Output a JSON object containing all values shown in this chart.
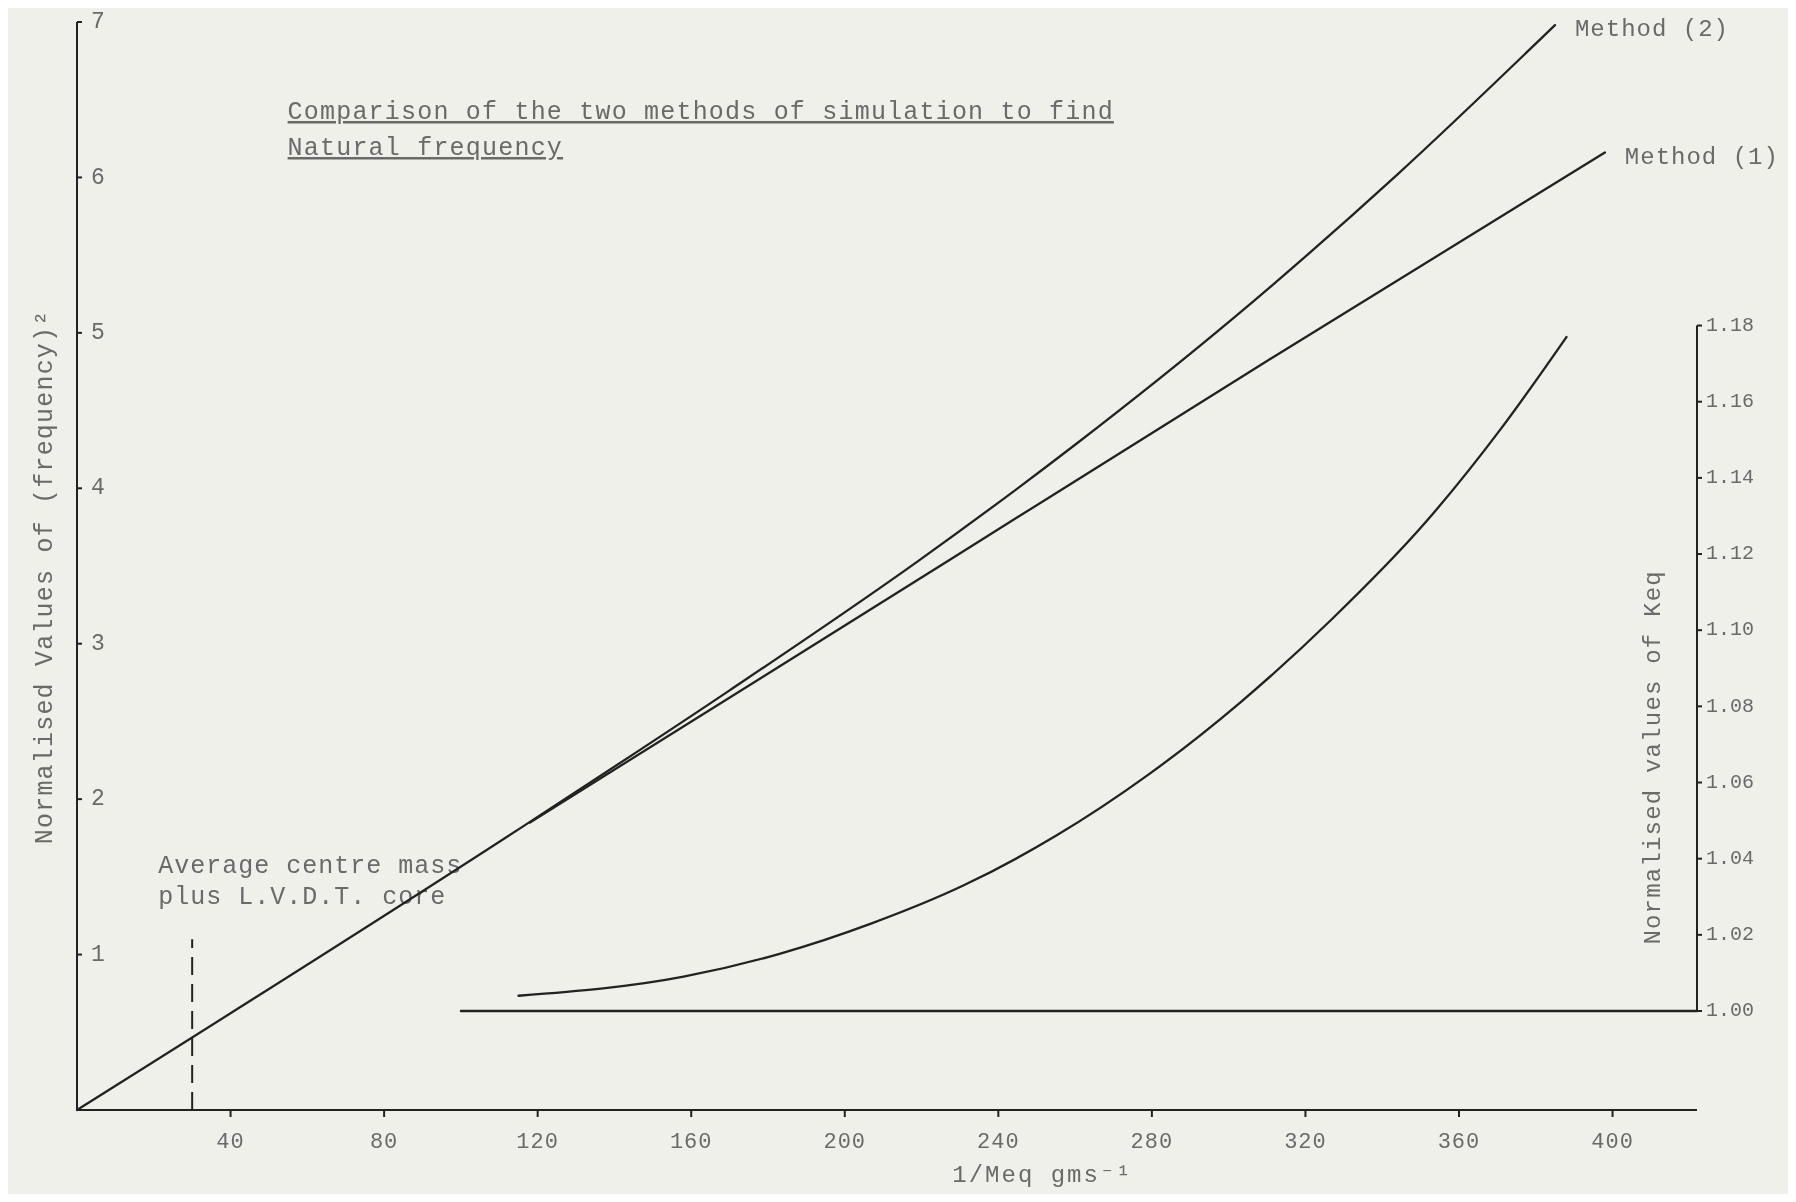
{
  "chart_data": {
    "type": "line",
    "title": "Comparison of the two methods of simulation to find\nNatural frequency",
    "xlabel": "1/Meq gms⁻¹",
    "ylabel": "Normalised Values of (frequency)²",
    "y2label": "Normalised values of Keq",
    "xlim": [
      0,
      422
    ],
    "xticks": [
      40,
      80,
      120,
      160,
      200,
      240,
      280,
      320,
      360,
      400
    ],
    "ylim": [
      0,
      7
    ],
    "yticks": [
      1,
      2,
      3,
      4,
      5,
      6,
      7
    ],
    "y2lim": [
      1,
      1.18
    ],
    "y2ticks": [
      {
        "value": 1,
        "label": "1.00"
      },
      1.02,
      1.04,
      1.06,
      1.08,
      {
        "value": 1.1,
        "label": "1.10"
      },
      1.12,
      1.14,
      1.16,
      1.18
    ],
    "series": [
      {
        "name": "Method (2)",
        "color": "#222222",
        "x": [
          0,
          119,
          170,
          219,
          260,
          301,
          344,
          385
        ],
        "values": [
          0,
          1.87,
          2.7,
          3.53,
          4.28,
          5.09,
          6.02,
          6.98
        ]
      },
      {
        "name": "Method (1)",
        "color": "#222222",
        "x": [
          118,
          228,
          312,
          398
        ],
        "values": [
          1.85,
          3.55,
          4.85,
          6.16
        ]
      },
      {
        "color": "#222222",
        "axis": "y2",
        "x": [
          115,
          158,
          183,
          207,
          231,
          255,
          279,
          303,
          327,
          351,
          371,
          388
        ],
        "values": [
          1.004,
          1.009,
          1.015,
          1.023,
          1.033,
          1.046,
          1.062,
          1.081,
          1.103,
          1.128,
          1.153,
          1.177
        ]
      },
      {
        "color": "#222222",
        "axis": "y2",
        "x": [
          100,
          422
        ],
        "values": [
          1,
          1
        ]
      }
    ],
    "ref_lines": [
      {
        "axis": "x",
        "value": 30,
        "label": "Average centre mass\nplus L.V.D.T. core",
        "line_style": "dashed"
      }
    ]
  }
}
